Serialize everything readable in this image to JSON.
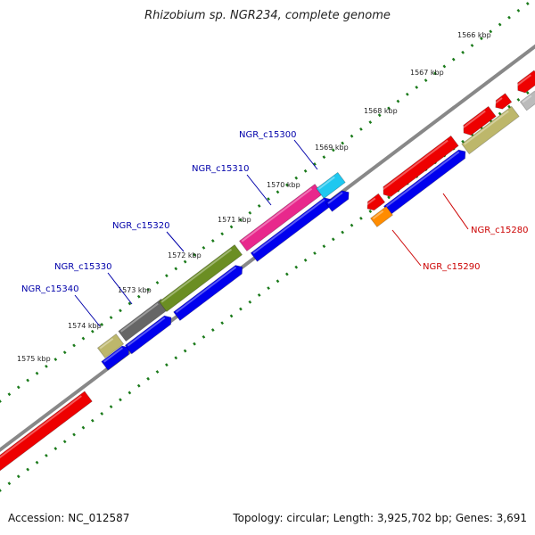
{
  "title": "Rhizobium sp. NGR234, complete genome",
  "footer": {
    "accession": "Accession: NC_012587",
    "summary": "Topology: circular; Length: 3,925,702 bp; Genes: 3,691"
  },
  "scale": {
    "ticks": [
      "1566 kbp",
      "1567 kbp",
      "1568 kbp",
      "1569 kbp",
      "1570 kbp",
      "1571 kbp",
      "1572 kbp",
      "1573 kbp",
      "1574 kbp",
      "1575 kbp"
    ]
  },
  "genes": {
    "labels_left": [
      "NGR_c15300",
      "NGR_c15310",
      "NGR_c15320",
      "NGR_c15330",
      "NGR_c15340"
    ],
    "labels_right": [
      "NGR_c15280",
      "NGR_c15290"
    ]
  },
  "colors": {
    "backbone": "#888888",
    "tick": "#1a7a1a",
    "red": "#ee0000",
    "blue": "#0000ee",
    "olive": "#6b8e23",
    "khaki": "#bdb76b",
    "grey": "#666666",
    "magenta": "#e8288c",
    "orange": "#ff8c00",
    "cyan": "#1ec8f0",
    "label_blue": "#0000aa",
    "label_red": "#cc0000"
  }
}
